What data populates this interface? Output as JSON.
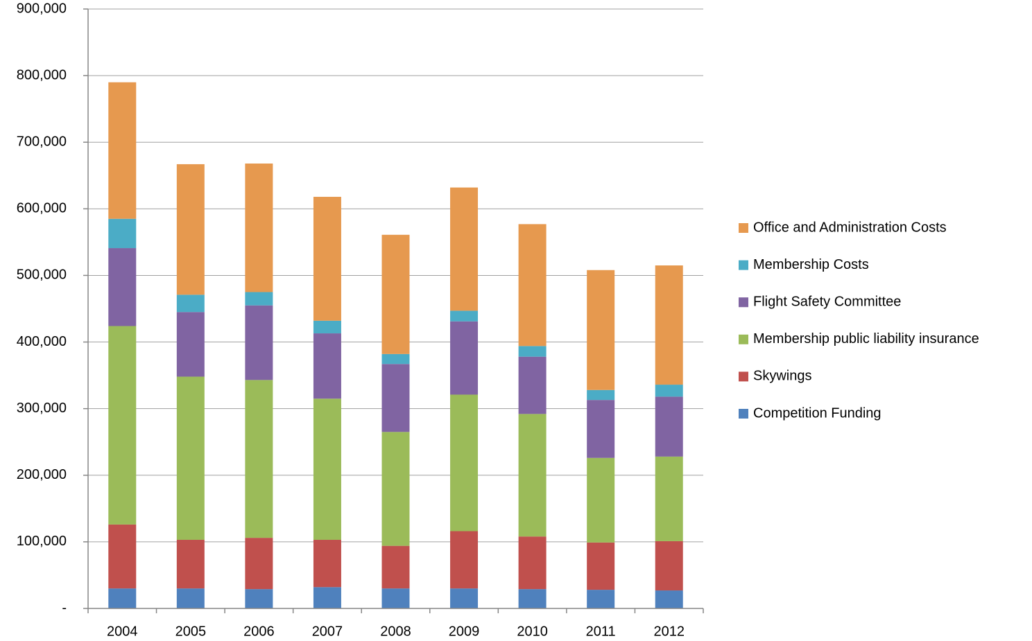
{
  "chart_data": {
    "type": "stacked_bar",
    "categories": [
      "2004",
      "2005",
      "2006",
      "2007",
      "2008",
      "2009",
      "2010",
      "2011",
      "2012"
    ],
    "series": [
      {
        "name": "Competition Funding",
        "color": "#4f81bd",
        "values": [
          30000,
          30000,
          29000,
          32000,
          30000,
          30000,
          29000,
          28000,
          27000
        ]
      },
      {
        "name": "Skywings",
        "color": "#c0504d",
        "values": [
          96000,
          73000,
          77000,
          71000,
          64000,
          86000,
          79000,
          71000,
          74000
        ]
      },
      {
        "name": "Membership public liability insurance",
        "color": "#9bbb59",
        "values": [
          298000,
          245000,
          237000,
          212000,
          171000,
          205000,
          184000,
          127000,
          127000
        ]
      },
      {
        "name": "Flight Safety Committee",
        "color": "#8064a2",
        "values": [
          117000,
          97000,
          112000,
          98000,
          102000,
          110000,
          86000,
          87000,
          90000
        ]
      },
      {
        "name": "Membership Costs",
        "color": "#4bacc6",
        "values": [
          44000,
          26000,
          20000,
          19000,
          15000,
          16000,
          16000,
          15000,
          18000
        ]
      },
      {
        "name": "Office and Administration Costs",
        "color": "#e6994f",
        "values": [
          205000,
          196000,
          193000,
          186000,
          179000,
          185000,
          183000,
          180000,
          179000
        ]
      }
    ],
    "ylim": [
      0,
      900000
    ],
    "yticks": [
      {
        "value": 0,
        "label": "-"
      },
      {
        "value": 100000,
        "label": "100,000"
      },
      {
        "value": 200000,
        "label": "200,000"
      },
      {
        "value": 300000,
        "label": "300,000"
      },
      {
        "value": 400000,
        "label": "400,000"
      },
      {
        "value": 500000,
        "label": "500,000"
      },
      {
        "value": 600000,
        "label": "600,000"
      },
      {
        "value": 700000,
        "label": "700,000"
      },
      {
        "value": 800000,
        "label": "800,000"
      },
      {
        "value": 900000,
        "label": "900,000"
      }
    ],
    "grid": true,
    "legend": "right"
  }
}
